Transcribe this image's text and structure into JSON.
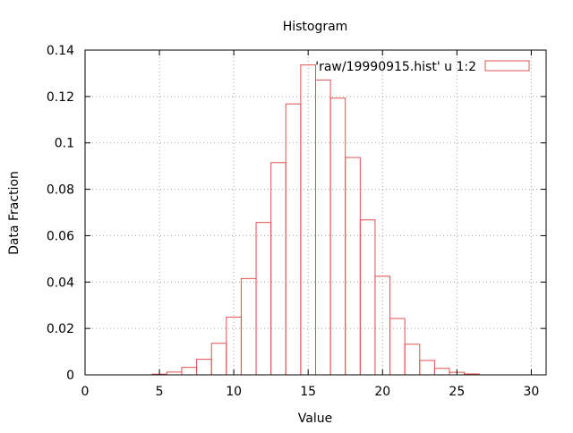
{
  "chart_data": {
    "type": "bar",
    "title": "Histogram",
    "xlabel": "Value",
    "ylabel": "Data Fraction",
    "xlim": [
      0,
      31
    ],
    "ylim": [
      0,
      0.14
    ],
    "x_ticks": [
      "0",
      "5",
      "10",
      "15",
      "20",
      "25",
      "30"
    ],
    "y_ticks": [
      "0",
      "0.02",
      "0.04",
      "0.06",
      "0.08",
      "0.1",
      "0.12",
      "0.14"
    ],
    "grid": true,
    "legend_position": "top-right",
    "series": [
      {
        "name": "'raw/19990915.hist' u 1:2",
        "color": "#e05050",
        "x": [
          5,
          6,
          7,
          8,
          9,
          10,
          11,
          12,
          13,
          14,
          15,
          16,
          17,
          18,
          19,
          20,
          21,
          22,
          23,
          24,
          25,
          26
        ],
        "values": [
          0.0003,
          0.0012,
          0.0032,
          0.0067,
          0.0136,
          0.0249,
          0.0415,
          0.0657,
          0.0915,
          0.1168,
          0.1336,
          0.1271,
          0.1193,
          0.0937,
          0.0668,
          0.0425,
          0.0243,
          0.0132,
          0.0062,
          0.0028,
          0.0011,
          0.0004
        ]
      }
    ]
  }
}
